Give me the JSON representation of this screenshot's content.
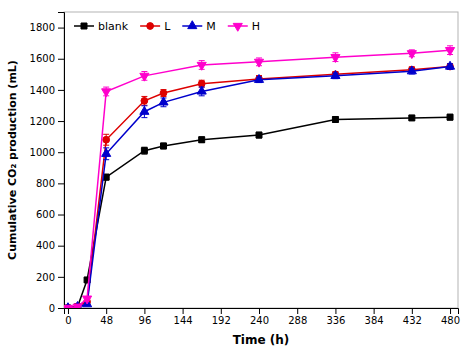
{
  "chart_data": {
    "type": "line",
    "xlabel": "Time (h)",
    "ylabel": "Cumulative CO₂ production (mL)",
    "xlim": [
      -5,
      490
    ],
    "ylim": [
      0,
      1900
    ],
    "xticks": [
      0,
      48,
      96,
      144,
      192,
      240,
      288,
      336,
      384,
      432,
      480
    ],
    "yticks": [
      0,
      200,
      400,
      600,
      800,
      1000,
      1200,
      1400,
      1600,
      1800
    ],
    "grid": false,
    "legend": "top-left",
    "series": [
      {
        "name": "blank",
        "color": "#000000",
        "marker": "square",
        "x": [
          0,
          12,
          24,
          48,
          96,
          120,
          168,
          240,
          336,
          432,
          480
        ],
        "values": [
          0,
          8,
          180,
          840,
          1010,
          1040,
          1080,
          1110,
          1210,
          1220,
          1225
        ],
        "errors": [
          0,
          5,
          8,
          18,
          22,
          18,
          18,
          18,
          18,
          15,
          18
        ]
      },
      {
        "name": "L",
        "color": "#dd0000",
        "marker": "circle",
        "x": [
          0,
          12,
          24,
          48,
          96,
          120,
          168,
          240,
          336,
          432,
          480
        ],
        "values": [
          0,
          10,
          40,
          1080,
          1330,
          1380,
          1440,
          1470,
          1500,
          1530,
          1550
        ],
        "errors": [
          0,
          5,
          5,
          35,
          28,
          22,
          22,
          22,
          18,
          18,
          18
        ]
      },
      {
        "name": "M",
        "color": "#0000cc",
        "marker": "triangle-up",
        "x": [
          0,
          12,
          24,
          48,
          96,
          120,
          168,
          240,
          336,
          432,
          480
        ],
        "values": [
          0,
          8,
          25,
          990,
          1260,
          1320,
          1390,
          1465,
          1490,
          1520,
          1550
        ],
        "errors": [
          0,
          5,
          5,
          38,
          38,
          28,
          28,
          18,
          18,
          18,
          18
        ]
      },
      {
        "name": "H",
        "color": "#ff00cc",
        "marker": "triangle-down",
        "x": [
          0,
          12,
          24,
          48,
          96,
          168,
          240,
          336,
          432,
          480
        ],
        "values": [
          0,
          8,
          60,
          1390,
          1490,
          1560,
          1580,
          1610,
          1635,
          1655
        ],
        "errors": [
          0,
          5,
          8,
          28,
          28,
          28,
          25,
          28,
          22,
          28
        ]
      }
    ]
  }
}
